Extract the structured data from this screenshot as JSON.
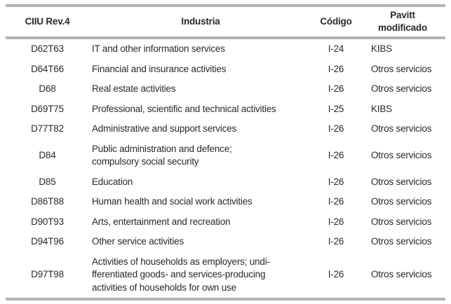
{
  "table": {
    "headers": [
      "CIIU Rev.4",
      "Industria",
      "Código",
      "Pavitt modificado"
    ],
    "rows": [
      {
        "ciiu": "D62T63",
        "industria": "IT and other information services",
        "codigo": "I-24",
        "pavitt": "KIBS"
      },
      {
        "ciiu": "D64T66",
        "industria": "Financial and insurance activities",
        "codigo": "I-26",
        "pavitt": "Otros servicios"
      },
      {
        "ciiu": "D68",
        "industria": "Real estate activities",
        "codigo": "I-26",
        "pavitt": "Otros servicios"
      },
      {
        "ciiu": "D69T75",
        "industria": "Professional, scientific and technical activities",
        "codigo": "I-25",
        "pavitt": "KIBS"
      },
      {
        "ciiu": "D77T82",
        "industria": "Administrative and support services",
        "codigo": "I-26",
        "pavitt": "Otros servicios"
      },
      {
        "ciiu": "D84",
        "industria": "Public administration and defence;\ncompulsory social security",
        "codigo": "I-26",
        "pavitt": "Otros servicios"
      },
      {
        "ciiu": "D85",
        "industria": "Education",
        "codigo": "I-26",
        "pavitt": "Otros servicios"
      },
      {
        "ciiu": "D86T88",
        "industria": "Human health and social work activities",
        "codigo": "I-26",
        "pavitt": "Otros servicios"
      },
      {
        "ciiu": "D90T93",
        "industria": "Arts, entertainment and recreation",
        "codigo": "I-26",
        "pavitt": "Otros servicios"
      },
      {
        "ciiu": "D94T96",
        "industria": "Other service activities",
        "codigo": "I-26",
        "pavitt": "Otros servicios"
      },
      {
        "ciiu": "D97T98",
        "industria": "Activities of households as employers; undi-\nfferentiated goods- and services-producing\nactivities of households for own use",
        "codigo": "I-26",
        "pavitt": "Otros servicios"
      }
    ],
    "colors": {
      "rule": "#b4b4b4",
      "text": "#2a2a2a",
      "background": "#ffffff"
    }
  }
}
